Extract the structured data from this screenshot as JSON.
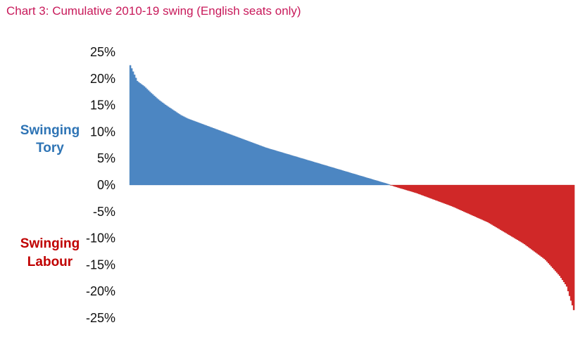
{
  "title": "Chart 3: Cumulative 2010-19 swing (English seats only)",
  "labels": {
    "tory": [
      "Swinging",
      "Tory"
    ],
    "labour": [
      "Swinging",
      "Labour"
    ]
  },
  "colors": {
    "title": "#c8195a",
    "tory": "#4f88c6",
    "tory_label": "#2e74b5",
    "labour": "#d42a2a",
    "labour_label": "#c00000"
  },
  "chart_data": {
    "type": "bar",
    "title": "Chart 3: Cumulative 2010-19 swing (English seats only)",
    "xlabel": "",
    "ylabel": "",
    "ylim": [
      -25,
      25
    ],
    "yticks": [
      25,
      20,
      15,
      10,
      5,
      0,
      -5,
      -10,
      -15,
      -20,
      -25
    ],
    "ytick_labels": [
      "25%",
      "20%",
      "15%",
      "10%",
      "5%",
      "0%",
      "-5%",
      "-10%",
      "-15%",
      "-20%",
      "-25%"
    ],
    "grid": false,
    "legend": "none",
    "series": [
      {
        "values": [
          22.5,
          19.5,
          18.5,
          17.2,
          16.0,
          15.0,
          14.1,
          13.2,
          12.5,
          12.0,
          11.5,
          11.0,
          10.5,
          10.0,
          9.5,
          9.0,
          8.5,
          8.0,
          7.5,
          7.0,
          6.6,
          6.2,
          5.8,
          5.4,
          5.0,
          4.6,
          4.2,
          3.8,
          3.4,
          3.0,
          2.6,
          2.2,
          1.8,
          1.4,
          1.0,
          0.6,
          0.2,
          -0.3,
          -0.7,
          -1.1,
          -1.5,
          -2.0,
          -2.5,
          -3.0,
          -3.5,
          -4.0,
          -4.6,
          -5.2,
          -5.8,
          -6.4,
          -7.0,
          -7.8,
          -8.6,
          -9.4,
          -10.2,
          -11.0,
          -12.0,
          -13.0,
          -14.0,
          -15.5,
          -17.0,
          -19.0,
          -23.5
        ]
      }
    ]
  }
}
